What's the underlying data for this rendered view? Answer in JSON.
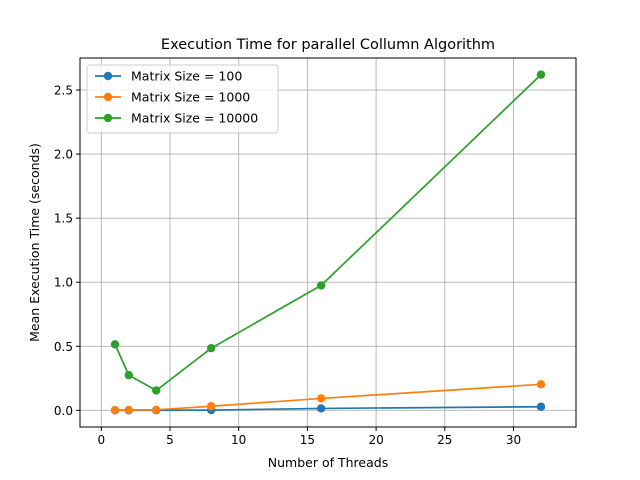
{
  "chart_data": {
    "type": "line",
    "title": "Execution Time for parallel Collumn Algorithm",
    "xlabel": "Number of Threads",
    "ylabel": "Mean Execution Time (seconds)",
    "xlim": [
      -1.55,
      34.55
    ],
    "ylim": [
      -0.13,
      2.75
    ],
    "xticks": [
      0,
      5,
      10,
      15,
      20,
      25,
      30
    ],
    "xtick_labels": [
      "0",
      "5",
      "10",
      "15",
      "20",
      "25",
      "30"
    ],
    "yticks": [
      0.0,
      0.5,
      1.0,
      1.5,
      2.0,
      2.5
    ],
    "ytick_labels": [
      "0.0",
      "0.5",
      "1.0",
      "1.5",
      "2.0",
      "2.5"
    ],
    "grid": true,
    "legend_position": "top-left",
    "series": [
      {
        "name": "Matrix Size = 100",
        "color": "#1f77b4",
        "x": [
          1,
          2,
          4,
          8,
          16,
          32
        ],
        "y": [
          0.0005,
          0.0006,
          0.0009,
          0.002,
          0.015,
          0.028
        ]
      },
      {
        "name": "Matrix Size = 1000",
        "color": "#ff7f0e",
        "x": [
          1,
          2,
          4,
          8,
          16,
          32
        ],
        "y": [
          0.002,
          0.003,
          0.004,
          0.032,
          0.093,
          0.203
        ]
      },
      {
        "name": "Matrix Size = 10000",
        "color": "#2ca02c",
        "x": [
          1,
          2,
          4,
          8,
          16,
          32
        ],
        "y": [
          0.515,
          0.275,
          0.155,
          0.485,
          0.975,
          2.62
        ]
      }
    ]
  }
}
